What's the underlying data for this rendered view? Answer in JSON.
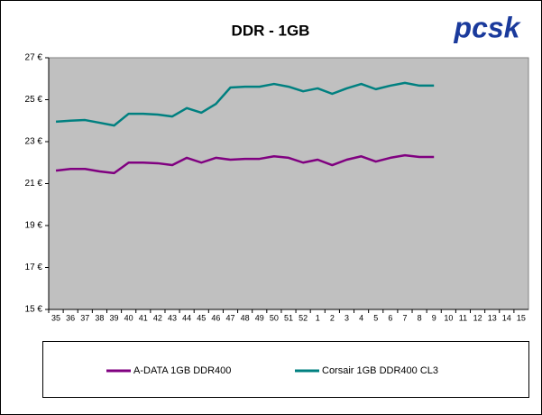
{
  "chart_data": {
    "type": "line",
    "title": "DDR - 1GB",
    "logo": "pcsk",
    "categories": [
      "35",
      "36",
      "37",
      "38",
      "39",
      "40",
      "41",
      "42",
      "43",
      "44",
      "45",
      "46",
      "47",
      "48",
      "49",
      "50",
      "51",
      "52",
      "1",
      "2",
      "3",
      "4",
      "5",
      "6",
      "7",
      "8",
      "9",
      "10",
      "11",
      "12",
      "13",
      "14",
      "15"
    ],
    "series": [
      {
        "name": "A-DATA 1GB DDR400",
        "color": "#800080",
        "values": [
          21.62,
          21.7,
          21.7,
          21.58,
          21.5,
          22.0,
          22.0,
          21.97,
          21.88,
          22.23,
          22.0,
          22.23,
          22.14,
          22.18,
          22.18,
          22.3,
          22.23,
          22.0,
          22.14,
          21.88,
          22.14,
          22.3,
          22.05,
          22.23,
          22.35,
          22.27,
          22.27,
          null,
          null,
          null,
          null,
          null,
          null
        ]
      },
      {
        "name": "Corsair 1GB DDR400 CL3",
        "color": "#008080",
        "values": [
          23.95,
          24.0,
          24.03,
          23.9,
          23.77,
          24.33,
          24.33,
          24.29,
          24.2,
          24.6,
          24.38,
          24.8,
          25.58,
          25.62,
          25.62,
          25.75,
          25.62,
          25.4,
          25.54,
          25.28,
          25.54,
          25.75,
          25.5,
          25.67,
          25.8,
          25.67,
          25.67,
          null,
          null,
          null,
          null,
          null,
          null
        ]
      }
    ],
    "ylim": [
      15,
      27
    ],
    "yticks": [
      {
        "value": 15,
        "label": "15 €"
      },
      {
        "value": 17,
        "label": "17 €"
      },
      {
        "value": 19,
        "label": "19 €"
      },
      {
        "value": 21,
        "label": "21 €"
      },
      {
        "value": 23,
        "label": "23 €"
      },
      {
        "value": 25,
        "label": "25 €"
      },
      {
        "value": 27,
        "label": "27 €"
      }
    ],
    "plot_background": "#c0c0c0",
    "legend": "bottom"
  }
}
